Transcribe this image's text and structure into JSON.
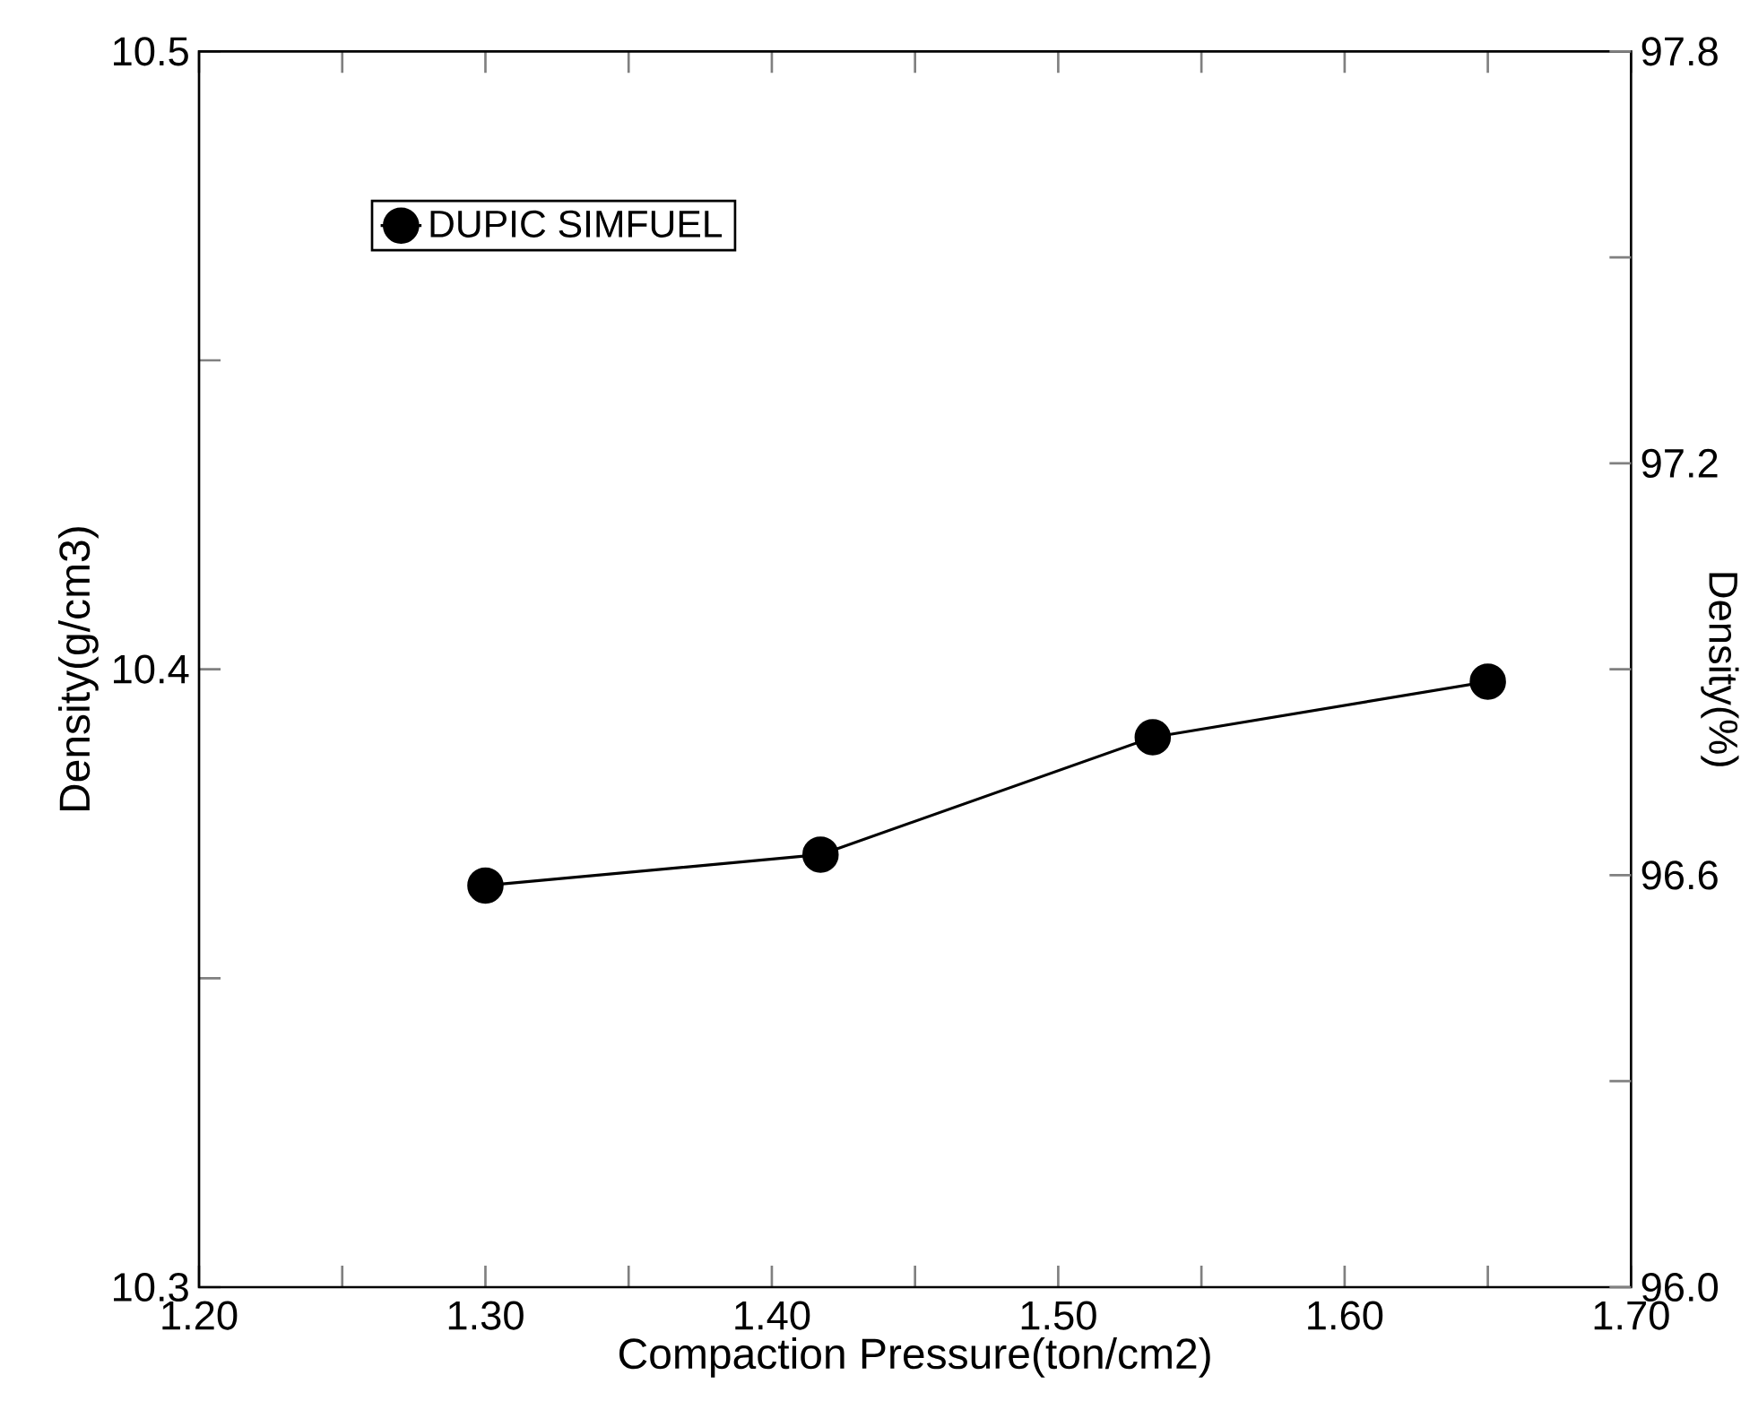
{
  "chart_data": {
    "type": "line",
    "xlabel": "Compaction Pressure(ton/cm2)",
    "ylabel": "Density(g/cm3)",
    "y2label": "Density(%)",
    "x": [
      1.3,
      1.417,
      1.533,
      1.65
    ],
    "series": [
      {
        "name": "DUPIC SIMFUEL",
        "color": "#000000",
        "values": [
          10.365,
          10.37,
          10.389,
          10.398
        ]
      }
    ],
    "xlim": [
      1.2,
      1.7
    ],
    "ylim": [
      10.3,
      10.5
    ],
    "y2lim": [
      96.0,
      97.8
    ],
    "xticks": [
      {
        "value": 1.2,
        "label": "1.20"
      },
      {
        "value": 1.25,
        "label": null
      },
      {
        "value": 1.3,
        "label": "1.30"
      },
      {
        "value": 1.35,
        "label": null
      },
      {
        "value": 1.4,
        "label": "1.40"
      },
      {
        "value": 1.45,
        "label": null
      },
      {
        "value": 1.5,
        "label": "1.50"
      },
      {
        "value": 1.55,
        "label": null
      },
      {
        "value": 1.6,
        "label": "1.60"
      },
      {
        "value": 1.65,
        "label": null
      },
      {
        "value": 1.7,
        "label": "1.70"
      }
    ],
    "yticks": [
      10.3,
      {
        "value": 10.35,
        "label": null
      },
      10.4,
      {
        "value": 10.45,
        "label": null
      },
      10.5
    ],
    "y2ticks": [
      {
        "value": 96.0,
        "label": "96.0"
      },
      {
        "value": 96.3,
        "label": null
      },
      96.6,
      {
        "value": 96.9,
        "label": null
      },
      97.2,
      {
        "value": 97.5,
        "label": null
      },
      97.8
    ],
    "legend": "top left",
    "marker": "circle",
    "line_style": "solid",
    "grid": false
  }
}
